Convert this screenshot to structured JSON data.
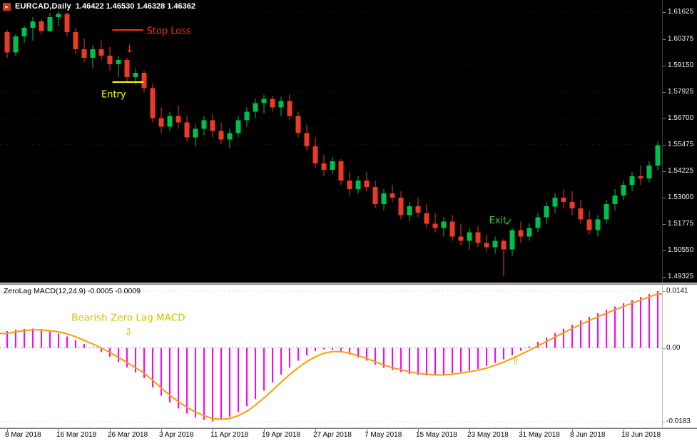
{
  "window": {
    "icon_glyph": "▸",
    "symbol_title": "EURCAD,Daily",
    "ohlc_values": "1.46422 1.46530 1.46328 1.46362",
    "indicator_title": "ZeroLag MACD(12,24,9) -0.0005 -0.0009"
  },
  "colors": {
    "background": "#000000",
    "panel_background": "#ffffff",
    "bull": "#00bf4f",
    "bear": "#ea3b26",
    "grid_price": "#1c1c1c",
    "macd_histogram": "#ff00ff",
    "macd_signal": "#ff9c00",
    "macd_zero_line": "#999999",
    "macd_level_line": "#dddddd",
    "stop_loss": "#ff2d1e",
    "entry": "#ffff00",
    "exit": "#33cc33",
    "macd_annotation": "#cfc300"
  },
  "price_axis": {
    "labels": [
      "1.61625",
      "1.60375",
      "1.59150",
      "1.57925",
      "1.56700",
      "1.55475",
      "1.54225",
      "1.53000",
      "1.51775",
      "1.50550",
      "1.49325"
    ]
  },
  "macd_axis": {
    "labels": [
      {
        "text": "0.0141",
        "value": 0.0141
      },
      {
        "text": "0.00",
        "value": 0
      },
      {
        "text": "-0.0183",
        "value": -0.0183
      }
    ]
  },
  "time_axis": {
    "labels": [
      {
        "text": "8 Mar 2018",
        "candle": 0
      },
      {
        "text": "16 Mar 2018",
        "candle": 6
      },
      {
        "text": "26 Mar 2018",
        "candle": 12
      },
      {
        "text": "3 Apr 2018",
        "candle": 18
      },
      {
        "text": "11 Apr 2018",
        "candle": 24
      },
      {
        "text": "19 Apr 2018",
        "candle": 30
      },
      {
        "text": "27 Apr 2018",
        "candle": 36
      },
      {
        "text": "7 May 2018",
        "candle": 42
      },
      {
        "text": "15 May 2018",
        "candle": 48
      },
      {
        "text": "23 May 2018",
        "candle": 54
      },
      {
        "text": "31 May 2018",
        "candle": 60
      },
      {
        "text": "8 Jun 2018",
        "candle": 66
      },
      {
        "text": "18 Jun 2018",
        "candle": 72
      }
    ]
  },
  "chart_data": [
    {
      "type": "candlestick",
      "title": "EURCAD Daily",
      "ylim": [
        1.49325,
        1.61625
      ],
      "candles": [
        [
          1.607,
          1.608,
          1.595,
          1.5975
        ],
        [
          1.5975,
          1.606,
          1.596,
          1.605
        ],
        [
          1.605,
          1.61,
          1.602,
          1.609
        ],
        [
          1.609,
          1.614,
          1.603,
          1.612
        ],
        [
          1.612,
          1.613,
          1.606,
          1.6075
        ],
        [
          1.6075,
          1.616,
          1.607,
          1.614
        ],
        [
          1.614,
          1.6165,
          1.61,
          1.6155
        ],
        [
          1.6155,
          1.616,
          1.605,
          1.607
        ],
        [
          1.607,
          1.609,
          1.597,
          1.599
        ],
        [
          1.599,
          1.604,
          1.593,
          1.595
        ],
        [
          1.595,
          1.601,
          1.59,
          1.599
        ],
        [
          1.599,
          1.603,
          1.594,
          1.596
        ],
        [
          1.596,
          1.6,
          1.589,
          1.592
        ],
        [
          1.592,
          1.596,
          1.586,
          1.594
        ],
        [
          1.594,
          1.595,
          1.584,
          1.586
        ],
        [
          1.586,
          1.59,
          1.583,
          1.588
        ],
        [
          1.588,
          1.589,
          1.579,
          1.581
        ],
        [
          1.581,
          1.583,
          1.565,
          1.567
        ],
        [
          1.567,
          1.572,
          1.56,
          1.563
        ],
        [
          1.563,
          1.57,
          1.561,
          1.568
        ],
        [
          1.568,
          1.573,
          1.562,
          1.565
        ],
        [
          1.565,
          1.568,
          1.556,
          1.558
        ],
        [
          1.558,
          1.564,
          1.554,
          1.562
        ],
        [
          1.562,
          1.568,
          1.559,
          1.566
        ],
        [
          1.566,
          1.569,
          1.558,
          1.561
        ],
        [
          1.561,
          1.565,
          1.555,
          1.557
        ],
        [
          1.557,
          1.562,
          1.553,
          1.56
        ],
        [
          1.56,
          1.568,
          1.558,
          1.566
        ],
        [
          1.566,
          1.572,
          1.563,
          1.57
        ],
        [
          1.57,
          1.576,
          1.567,
          1.574
        ],
        [
          1.574,
          1.578,
          1.569,
          1.576
        ],
        [
          1.576,
          1.5775,
          1.57,
          1.572
        ],
        [
          1.572,
          1.577,
          1.568,
          1.575
        ],
        [
          1.575,
          1.578,
          1.566,
          1.568
        ],
        [
          1.568,
          1.57,
          1.558,
          1.56
        ],
        [
          1.56,
          1.564,
          1.552,
          1.554
        ],
        [
          1.554,
          1.558,
          1.544,
          1.546
        ],
        [
          1.546,
          1.55,
          1.54,
          1.543
        ],
        [
          1.543,
          1.549,
          1.541,
          1.547
        ],
        [
          1.547,
          1.548,
          1.536,
          1.538
        ],
        [
          1.538,
          1.542,
          1.531,
          1.534
        ],
        [
          1.534,
          1.54,
          1.532,
          1.538
        ],
        [
          1.538,
          1.542,
          1.533,
          1.535
        ],
        [
          1.535,
          1.538,
          1.525,
          1.527
        ],
        [
          1.527,
          1.534,
          1.524,
          1.532
        ],
        [
          1.532,
          1.536,
          1.528,
          1.53
        ],
        [
          1.53,
          1.533,
          1.52,
          1.522
        ],
        [
          1.522,
          1.528,
          1.519,
          1.526
        ],
        [
          1.526,
          1.53,
          1.521,
          1.523
        ],
        [
          1.523,
          1.527,
          1.516,
          1.518
        ],
        [
          1.518,
          1.523,
          1.514,
          1.516
        ],
        [
          1.516,
          1.521,
          1.512,
          1.519
        ],
        [
          1.519,
          1.522,
          1.51,
          1.512
        ],
        [
          1.512,
          1.518,
          1.508,
          1.51
        ],
        [
          1.51,
          1.516,
          1.506,
          1.514
        ],
        [
          1.514,
          1.517,
          1.507,
          1.509
        ],
        [
          1.509,
          1.513,
          1.505,
          1.507
        ],
        [
          1.507,
          1.512,
          1.504,
          1.51
        ],
        [
          1.51,
          1.511,
          1.4935,
          1.506
        ],
        [
          1.506,
          1.516,
          1.503,
          1.515
        ],
        [
          1.515,
          1.519,
          1.509,
          1.512
        ],
        [
          1.512,
          1.518,
          1.51,
          1.516
        ],
        [
          1.516,
          1.523,
          1.514,
          1.521
        ],
        [
          1.521,
          1.528,
          1.518,
          1.526
        ],
        [
          1.526,
          1.532,
          1.523,
          1.53
        ],
        [
          1.53,
          1.534,
          1.525,
          1.528
        ],
        [
          1.528,
          1.533,
          1.522,
          1.525
        ],
        [
          1.525,
          1.529,
          1.518,
          1.52
        ],
        [
          1.52,
          1.524,
          1.513,
          1.515
        ],
        [
          1.515,
          1.522,
          1.512,
          1.52
        ],
        [
          1.52,
          1.529,
          1.518,
          1.527
        ],
        [
          1.527,
          1.534,
          1.524,
          1.531
        ],
        [
          1.531,
          1.538,
          1.529,
          1.536
        ],
        [
          1.536,
          1.542,
          1.533,
          1.54
        ],
        [
          1.54,
          1.545,
          1.536,
          1.539
        ],
        [
          1.539,
          1.547,
          1.537,
          1.545
        ],
        [
          1.545,
          1.556,
          1.543,
          1.5545
        ]
      ]
    },
    {
      "type": "bar",
      "name": "ZeroLag MACD histogram",
      "ylim": [
        -0.0183,
        0.0141
      ],
      "values": [
        0.0042,
        0.0045,
        0.0047,
        0.0048,
        0.0045,
        0.0041,
        0.0036,
        0.0029,
        0.002,
        0.001,
        0.0001,
        -0.001,
        -0.0022,
        -0.0035,
        -0.0048,
        -0.0061,
        -0.0075,
        -0.0098,
        -0.0118,
        -0.0135,
        -0.015,
        -0.0163,
        -0.0172,
        -0.0179,
        -0.0182,
        -0.0179,
        -0.0171,
        -0.0159,
        -0.0144,
        -0.0126,
        -0.0106,
        -0.0086,
        -0.0066,
        -0.0048,
        -0.0032,
        -0.0018,
        -0.0008,
        -0.0003,
        -0.0004,
        -0.0009,
        -0.0016,
        -0.0024,
        -0.0032,
        -0.0041,
        -0.0049,
        -0.0055,
        -0.006,
        -0.0064,
        -0.0067,
        -0.0068,
        -0.0068,
        -0.0066,
        -0.0063,
        -0.0059,
        -0.0056,
        -0.0052,
        -0.0045,
        -0.0037,
        -0.0028,
        -0.0018,
        -0.0007,
        0.0004,
        0.0015,
        0.0026,
        0.0037,
        0.0048,
        0.0058,
        0.0068,
        0.0077,
        0.0086,
        0.0095,
        0.0103,
        0.0111,
        0.0119,
        0.0127,
        0.0134,
        0.0141
      ]
    },
    {
      "type": "line",
      "name": "ZeroLag MACD signal line",
      "values": [
        0.0036,
        0.004,
        0.0043,
        0.0045,
        0.0045,
        0.0043,
        0.004,
        0.0035,
        0.0028,
        0.0019,
        0.001,
        0.0,
        -0.0011,
        -0.0023,
        -0.0036,
        -0.0049,
        -0.0062,
        -0.008,
        -0.0099,
        -0.0117,
        -0.0133,
        -0.0147,
        -0.0159,
        -0.0168,
        -0.0175,
        -0.0177,
        -0.0175,
        -0.0168,
        -0.0157,
        -0.0142,
        -0.0124,
        -0.0105,
        -0.0085,
        -0.0066,
        -0.0049,
        -0.0034,
        -0.0022,
        -0.0013,
        -0.0009,
        -0.0009,
        -0.0013,
        -0.0019,
        -0.0026,
        -0.0034,
        -0.0042,
        -0.0049,
        -0.0054,
        -0.0059,
        -0.0063,
        -0.0065,
        -0.0067,
        -0.0067,
        -0.0065,
        -0.0062,
        -0.0059,
        -0.0055,
        -0.005,
        -0.0043,
        -0.0035,
        -0.0026,
        -0.0016,
        -0.0006,
        0.0005,
        0.0016,
        0.0027,
        0.0038,
        0.0048,
        0.0058,
        0.0068,
        0.0077,
        0.0086,
        0.0095,
        0.0103,
        0.0111,
        0.0119,
        0.0127,
        0.0134
      ]
    }
  ],
  "annotations": {
    "price_chart": [
      {
        "id": "stop-loss",
        "type": "level-line",
        "label": "Stop Loss",
        "color": "#ff2d1e",
        "price": 1.608,
        "from_candle": 12.7,
        "to_candle": 15.5,
        "label_candle": 16.3,
        "label_price": 1.6075,
        "size": 13
      },
      {
        "id": "sell-arrow-icon",
        "type": "glyph",
        "glyph": "↓",
        "color": "#ff2d1e",
        "candle": 14.3,
        "price": 1.5988,
        "size": 15
      },
      {
        "id": "entry",
        "type": "level-line",
        "label": "Entry",
        "color": "#ffff00",
        "price": 1.5838,
        "from_candle": 12.7,
        "to_candle": 15.5,
        "label_candle": 11.0,
        "label_price": 1.578,
        "size": 13
      },
      {
        "id": "exit",
        "type": "text",
        "label": "Exit",
        "color": "#33cc33",
        "candle": 56.3,
        "price": 1.5195,
        "size": 13
      },
      {
        "id": "exit-check-icon",
        "type": "glyph",
        "glyph": "✓",
        "color": "#33cc33",
        "candle": 58.6,
        "price": 1.5185,
        "size": 14
      }
    ],
    "macd_panel": [
      {
        "id": "bearish-macd-label",
        "type": "text",
        "label": "Bearish Zero Lag MACD",
        "color": "#cfc300",
        "candle": 7.5,
        "value": 0.0075,
        "size": 13.5
      },
      {
        "id": "macd-sell-arrow-icon",
        "type": "glyph",
        "glyph": "⇩",
        "color": "#cfc300",
        "candle": 14.2,
        "value": 0.0037,
        "size": 14
      },
      {
        "id": "macd-buy-arrow-icon",
        "type": "glyph",
        "glyph": "⇧",
        "color": "#cfc300",
        "candle": 59.4,
        "value": -0.0035,
        "size": 14
      }
    ]
  }
}
